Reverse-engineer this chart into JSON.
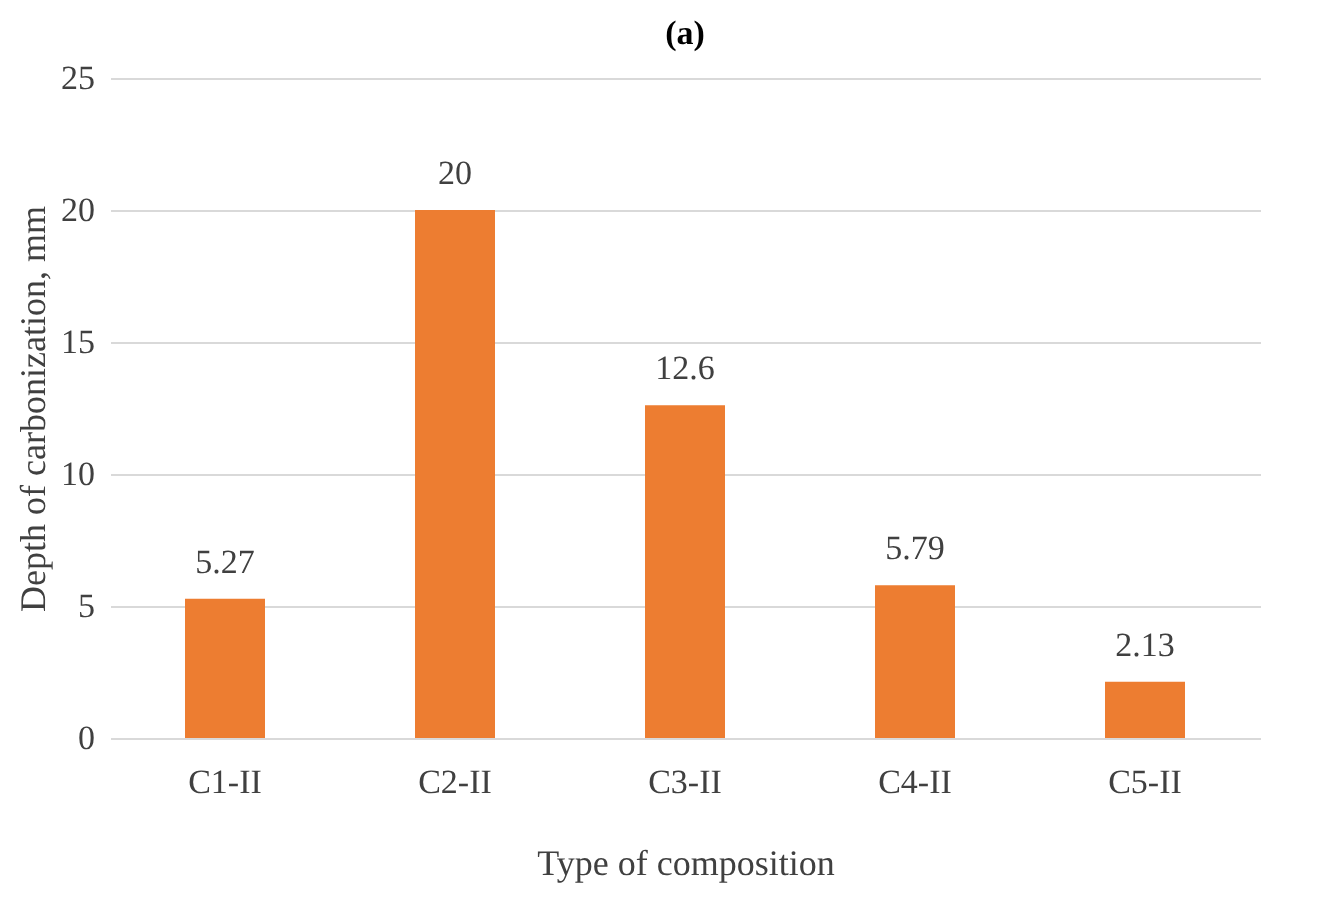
{
  "chart_data": {
    "type": "bar",
    "title": "(a)",
    "xlabel": "Type of composition",
    "ylabel": "Depth of carbonization, mm",
    "categories": [
      "C1-II",
      "C2-II",
      "C3-II",
      "C4-II",
      "C5-II"
    ],
    "values": [
      5.27,
      20,
      12.6,
      5.79,
      2.13
    ],
    "color": "#ed7d31",
    "ylim": [
      0,
      25
    ],
    "yticks": [
      0,
      5,
      10,
      15,
      20,
      25
    ],
    "grid": "y",
    "data_labels": true
  }
}
